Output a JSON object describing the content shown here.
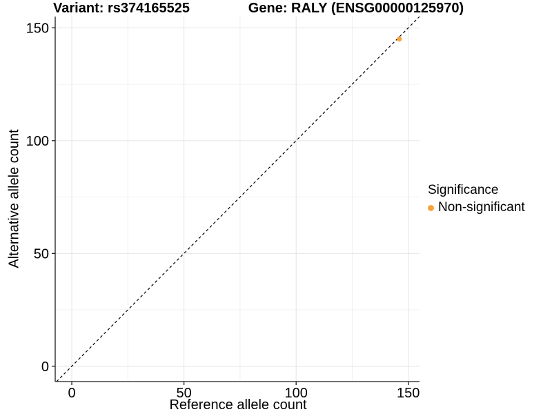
{
  "chart_data": {
    "type": "scatter",
    "titles": {
      "variant": "Variant: rs374165525",
      "gene": "Gene: RALY (ENSG00000125970)"
    },
    "xlabel": "Reference allele count",
    "ylabel": "Alternative allele count",
    "xlim": [
      -7.4,
      155
    ],
    "ylim": [
      -6.8,
      155
    ],
    "x_ticks": [
      0,
      50,
      100,
      150
    ],
    "y_ticks": [
      0,
      50,
      100,
      150
    ],
    "x_minor_ticks": [
      25,
      75,
      125
    ],
    "y_minor_ticks": [
      25,
      75,
      125
    ],
    "grid": true,
    "points": [
      {
        "x": 146,
        "y": 145,
        "significance": "Non-significant"
      }
    ],
    "reference_line": {
      "kind": "identity y=x",
      "style": "dashed",
      "color": "#000000"
    },
    "legend": {
      "title": "Significance",
      "position": "right",
      "items": [
        {
          "label": "Non-significant",
          "color": "#F9A43B",
          "marker": "circle"
        }
      ]
    },
    "colors": {
      "background": "#FFFFFF",
      "grid_major": "#E4E4E4",
      "grid_minor": "#F0F0F0",
      "axis": "#1A1A1A",
      "text": "#000000"
    }
  }
}
